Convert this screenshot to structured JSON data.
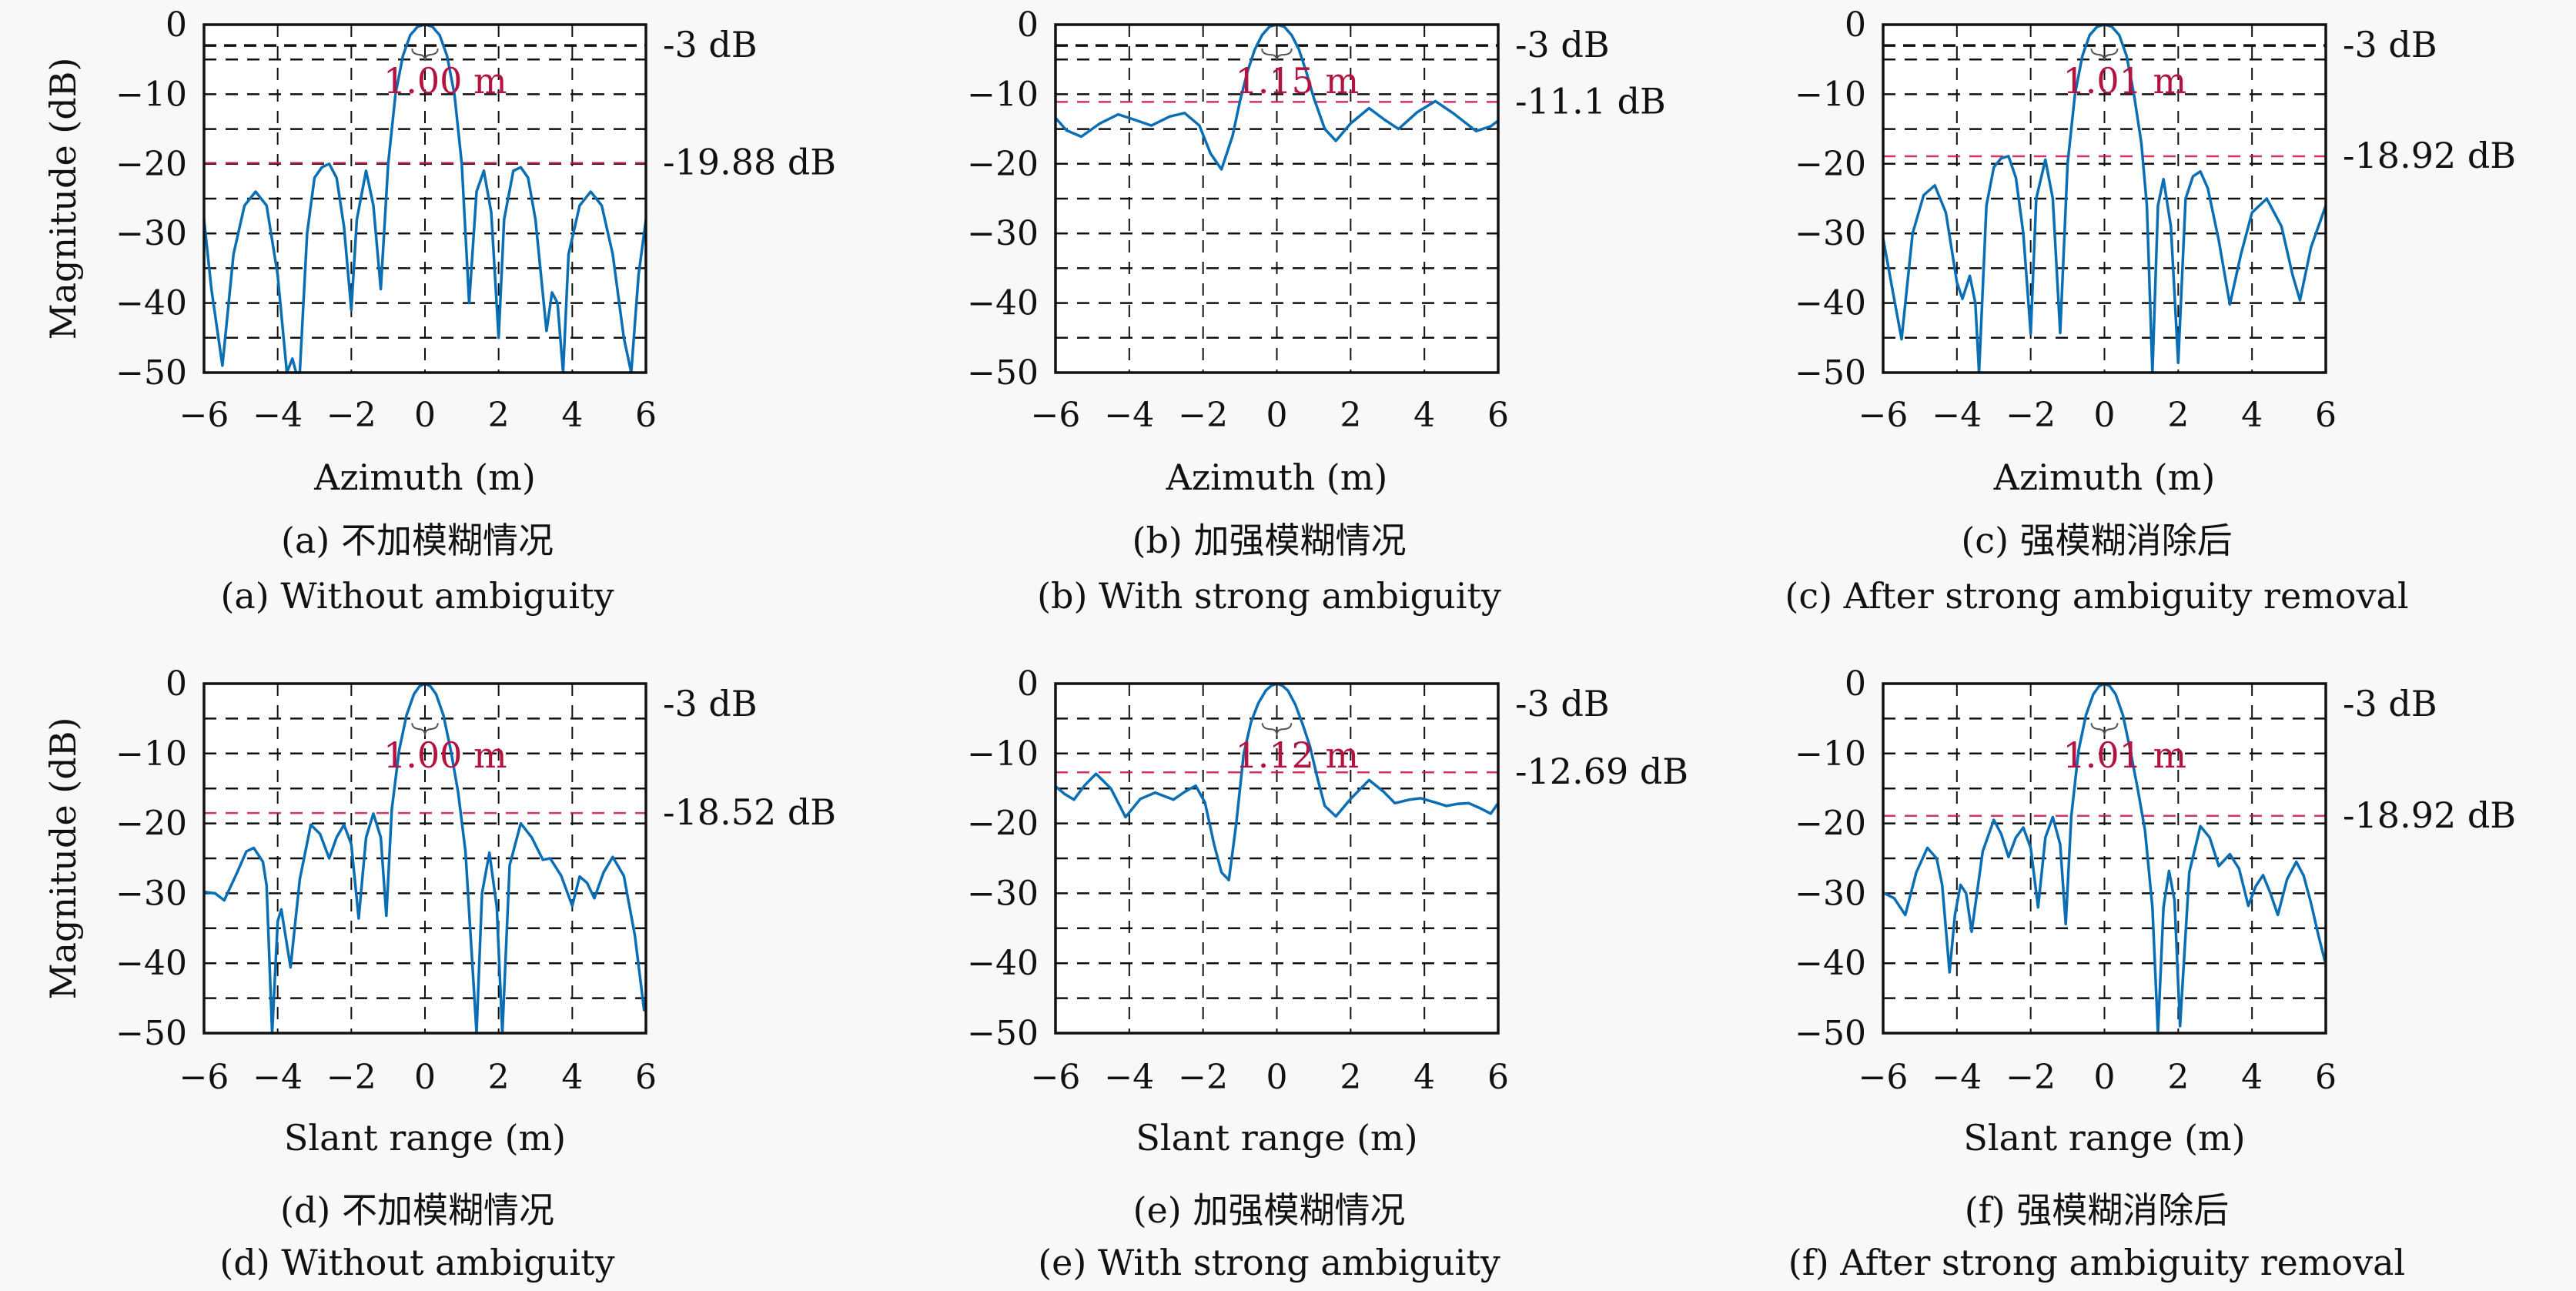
{
  "figure": {
    "ylabel": "Magnitude (dB)",
    "colors": {
      "curve": "#0a6eb4",
      "grid": "#111111",
      "pslr_line": "#d0104a",
      "annotation": "#b4123f",
      "background": "#f8f8f8"
    }
  },
  "chart_data": [
    {
      "id": "a",
      "type": "line",
      "row": 0,
      "col": 0,
      "xlabel": "Azimuth (m)",
      "ylabel": "Magnitude (dB)",
      "xlim": [
        -6,
        6
      ],
      "ylim": [
        -50,
        0
      ],
      "xticks": [
        -6,
        -4,
        -2,
        0,
        2,
        4,
        6
      ],
      "yticks": [
        0,
        -10,
        -20,
        -30,
        -40,
        -50
      ],
      "grid": true,
      "show_3db_line": true,
      "labels_right": [
        "-3 dB",
        "-19.88 dB"
      ],
      "pslr_db": -19.88,
      "resolution_label": "1.00 m",
      "resolution_m": 1.0,
      "caption_cn": "(a) 不加模糊情况",
      "caption_en": "(a) Without ambiguity",
      "x": [
        -6,
        -5.8,
        -5.5,
        -5.2,
        -4.9,
        -4.6,
        -4.3,
        -4.0,
        -3.75,
        -3.6,
        -3.5,
        -3.4,
        -3.2,
        -3.0,
        -2.8,
        -2.6,
        -2.4,
        -2.2,
        -2.0,
        -1.85,
        -1.6,
        -1.4,
        -1.2,
        -1.0,
        -0.8,
        -0.6,
        -0.4,
        -0.2,
        0,
        0.2,
        0.4,
        0.6,
        0.8,
        1.0,
        1.2,
        1.4,
        1.6,
        1.8,
        2.0,
        2.15,
        2.4,
        2.6,
        2.8,
        3.0,
        3.3,
        3.45,
        3.6,
        3.75,
        3.9,
        4.2,
        4.5,
        4.8,
        5.1,
        5.4,
        5.6,
        5.8,
        6.0
      ],
      "y": [
        -28,
        -38,
        -49,
        -33,
        -26,
        -24,
        -26,
        -36,
        -50,
        -48,
        -50,
        -50,
        -30,
        -22,
        -20.5,
        -20,
        -22,
        -29,
        -41,
        -28,
        -21,
        -26,
        -38,
        -20,
        -10,
        -4.5,
        -1.5,
        -0.3,
        0,
        -0.3,
        -1.5,
        -4.5,
        -10,
        -20,
        -40,
        -24,
        -21,
        -27,
        -45,
        -28,
        -21,
        -20.5,
        -22,
        -28,
        -44,
        -38.5,
        -40,
        -50,
        -33,
        -26,
        -24,
        -26,
        -33,
        -45,
        -50,
        -36,
        -28
      ]
    },
    {
      "id": "b",
      "type": "line",
      "row": 0,
      "col": 1,
      "xlabel": "Azimuth (m)",
      "ylabel": "",
      "xlim": [
        -6,
        6
      ],
      "ylim": [
        -50,
        0
      ],
      "xticks": [
        -6,
        -4,
        -2,
        0,
        2,
        4,
        6
      ],
      "yticks": [
        0,
        -10,
        -20,
        -30,
        -40,
        -50
      ],
      "grid": true,
      "show_3db_line": true,
      "labels_right": [
        "-3 dB",
        "-11.1 dB"
      ],
      "pslr_db": -11.1,
      "resolution_label": "1.15 m",
      "resolution_m": 1.15,
      "caption_cn": "(b) 加强模糊情况",
      "caption_en": "(b) With strong ambiguity",
      "x": [
        -6,
        -5.7,
        -5.3,
        -4.8,
        -4.3,
        -3.9,
        -3.4,
        -2.9,
        -2.5,
        -2.1,
        -1.8,
        -1.5,
        -1.2,
        -1.0,
        -0.8,
        -0.6,
        -0.4,
        -0.2,
        0,
        0.2,
        0.4,
        0.6,
        0.8,
        1.0,
        1.3,
        1.6,
        2.0,
        2.5,
        2.9,
        3.3,
        3.8,
        4.3,
        4.8,
        5.4,
        5.8,
        6.0
      ],
      "y": [
        -13.4,
        -15.2,
        -16.1,
        -14.2,
        -12.9,
        -13.6,
        -14.5,
        -13.2,
        -12.7,
        -14.5,
        -18.5,
        -20.8,
        -16,
        -11,
        -6.8,
        -3.6,
        -1.5,
        -0.3,
        0,
        -0.3,
        -1.5,
        -3.6,
        -6.8,
        -10.5,
        -15,
        -16.7,
        -14.2,
        -12,
        -13.6,
        -15,
        -12.6,
        -11,
        -12.8,
        -15.3,
        -14.6,
        -13.8
      ]
    },
    {
      "id": "c",
      "type": "line",
      "row": 0,
      "col": 2,
      "xlabel": "Azimuth (m)",
      "ylabel": "",
      "xlim": [
        -6,
        6
      ],
      "ylim": [
        -50,
        0
      ],
      "xticks": [
        -6,
        -4,
        -2,
        0,
        2,
        4,
        6
      ],
      "yticks": [
        0,
        -10,
        -20,
        -30,
        -40,
        -50
      ],
      "grid": true,
      "show_3db_line": true,
      "labels_right": [
        "-3 dB",
        "-18.92 dB"
      ],
      "pslr_db": -18.92,
      "resolution_label": "1.01 m",
      "resolution_m": 1.01,
      "caption_cn": "(c) 强模糊消除后",
      "caption_en": "(c) After strong ambiguity removal",
      "x": [
        -6,
        -5.75,
        -5.5,
        -5.2,
        -4.9,
        -4.6,
        -4.3,
        -4.0,
        -3.85,
        -3.65,
        -3.5,
        -3.4,
        -3.2,
        -3.0,
        -2.8,
        -2.6,
        -2.4,
        -2.2,
        -2.0,
        -1.85,
        -1.6,
        -1.4,
        -1.2,
        -1.0,
        -0.8,
        -0.6,
        -0.4,
        -0.2,
        0,
        0.2,
        0.4,
        0.6,
        0.8,
        1.0,
        1.15,
        1.3,
        1.45,
        1.6,
        1.8,
        2.0,
        2.2,
        2.4,
        2.6,
        2.8,
        3.1,
        3.4,
        3.7,
        4.0,
        4.4,
        4.8,
        5.1,
        5.3,
        5.6,
        6.0
      ],
      "y": [
        -30.7,
        -38,
        -45.2,
        -30,
        -24.5,
        -23.1,
        -27,
        -37,
        -39.4,
        -36.1,
        -40,
        -50,
        -26,
        -20.5,
        -19.2,
        -18.9,
        -22,
        -30,
        -44.4,
        -25,
        -19.4,
        -25,
        -44.3,
        -20,
        -10,
        -4.5,
        -1.5,
        -0.3,
        0,
        -0.3,
        -1.5,
        -4.5,
        -10,
        -17,
        -26,
        -50,
        -26,
        -22.2,
        -29,
        -48.6,
        -25,
        -21.8,
        -21.1,
        -23.5,
        -31,
        -40.2,
        -33,
        -27,
        -25,
        -29,
        -36,
        -39.6,
        -32,
        -26
      ]
    },
    {
      "id": "d",
      "type": "line",
      "row": 1,
      "col": 0,
      "xlabel": "Slant range (m)",
      "ylabel": "Magnitude (dB)",
      "xlim": [
        -6,
        6
      ],
      "ylim": [
        -50,
        0
      ],
      "xticks": [
        -6,
        -4,
        -2,
        0,
        2,
        4,
        6
      ],
      "yticks": [
        0,
        -10,
        -20,
        -30,
        -40,
        -50
      ],
      "grid": true,
      "show_3db_line": false,
      "labels_right": [
        "-3 dB",
        "-18.52 dB"
      ],
      "pslr_db": -18.52,
      "resolution_label": "1.00 m",
      "resolution_m": 1.0,
      "caption_cn": "(d) 不加模糊情况",
      "caption_en": "(d) Without ambiguity",
      "x": [
        -6,
        -5.7,
        -5.45,
        -5.1,
        -4.85,
        -4.65,
        -4.4,
        -4.3,
        -4.15,
        -4.0,
        -3.9,
        -3.65,
        -3.4,
        -3.1,
        -2.85,
        -2.6,
        -2.4,
        -2.2,
        -2.0,
        -1.8,
        -1.6,
        -1.4,
        -1.2,
        -1.05,
        -0.9,
        -0.7,
        -0.5,
        -0.3,
        -0.15,
        0,
        0.15,
        0.3,
        0.5,
        0.7,
        0.9,
        1.1,
        1.4,
        1.55,
        1.75,
        1.95,
        2.1,
        2.3,
        2.6,
        2.9,
        3.2,
        3.4,
        3.7,
        4.0,
        4.2,
        4.4,
        4.6,
        4.85,
        5.1,
        5.4,
        5.7,
        5.95,
        6.0
      ],
      "y": [
        -29.8,
        -30,
        -31,
        -27,
        -24,
        -23.5,
        -25.5,
        -28.9,
        -50,
        -34,
        -32.3,
        -40.6,
        -28,
        -20.2,
        -21.5,
        -25,
        -22,
        -20.2,
        -23,
        -33.6,
        -22,
        -18.6,
        -22,
        -33.2,
        -18,
        -9.5,
        -4.5,
        -1.5,
        -0.4,
        0,
        -0.4,
        -1.5,
        -4.5,
        -9.5,
        -15.5,
        -24,
        -50,
        -30,
        -24.2,
        -32,
        -50,
        -26,
        -20,
        -22,
        -25.2,
        -25,
        -27.5,
        -31.8,
        -27.6,
        -28.5,
        -30.7,
        -27,
        -24.8,
        -27.5,
        -36,
        -46.7,
        -45
      ]
    },
    {
      "id": "e",
      "type": "line",
      "row": 1,
      "col": 1,
      "xlabel": "Slant range (m)",
      "ylabel": "",
      "xlim": [
        -6,
        6
      ],
      "ylim": [
        -50,
        0
      ],
      "xticks": [
        -6,
        -4,
        -2,
        0,
        2,
        4,
        6
      ],
      "yticks": [
        0,
        -10,
        -20,
        -30,
        -40,
        -50
      ],
      "grid": true,
      "show_3db_line": false,
      "labels_right": [
        "-3 dB",
        "-12.69 dB"
      ],
      "pslr_db": -12.69,
      "resolution_label": "1.12 m",
      "resolution_m": 1.12,
      "caption_cn": "(e) 加强模糊情况",
      "caption_en": "(e) With strong ambiguity",
      "x": [
        -6,
        -5.75,
        -5.5,
        -5.2,
        -4.9,
        -4.5,
        -4.1,
        -3.7,
        -3.3,
        -2.8,
        -2.5,
        -2.2,
        -1.95,
        -1.7,
        -1.5,
        -1.3,
        -1.1,
        -0.9,
        -0.7,
        -0.5,
        -0.3,
        -0.15,
        0,
        0.15,
        0.3,
        0.5,
        0.7,
        0.9,
        1.1,
        1.3,
        1.6,
        2.0,
        2.5,
        2.9,
        3.2,
        3.6,
        3.9,
        4.3,
        4.6,
        4.9,
        5.2,
        5.5,
        5.8,
        6.0
      ],
      "y": [
        -14.7,
        -15.8,
        -16.6,
        -14.5,
        -12.9,
        -15,
        -19.1,
        -16.5,
        -15.6,
        -16.6,
        -15.5,
        -14.6,
        -17,
        -23,
        -27,
        -28.1,
        -20,
        -10.1,
        -5.5,
        -2.8,
        -1,
        -0.3,
        0,
        -0.3,
        -1,
        -3,
        -5.8,
        -9,
        -13.5,
        -17.5,
        -19,
        -16.5,
        -13.8,
        -15.5,
        -17.1,
        -16.6,
        -16.4,
        -17,
        -17.5,
        -17.2,
        -17.1,
        -17.8,
        -18.6,
        -17.1
      ]
    },
    {
      "id": "f",
      "type": "line",
      "row": 1,
      "col": 2,
      "xlabel": "Slant range (m)",
      "ylabel": "",
      "xlim": [
        -6,
        6
      ],
      "ylim": [
        -50,
        0
      ],
      "xticks": [
        -6,
        -4,
        -2,
        0,
        2,
        4,
        6
      ],
      "yticks": [
        0,
        -10,
        -20,
        -30,
        -40,
        -50
      ],
      "grid": true,
      "show_3db_line": false,
      "labels_right": [
        "-3 dB",
        "-18.92 dB"
      ],
      "pslr_db": -18.92,
      "resolution_label": "1.01 m",
      "resolution_m": 1.01,
      "caption_cn": "(f) 强模糊消除后",
      "caption_en": "(f) After strong ambiguity removal",
      "x": [
        -6,
        -5.7,
        -5.4,
        -5.1,
        -4.8,
        -4.55,
        -4.4,
        -4.2,
        -4.05,
        -3.9,
        -3.75,
        -3.6,
        -3.3,
        -3.0,
        -2.8,
        -2.6,
        -2.4,
        -2.2,
        -2.0,
        -1.8,
        -1.6,
        -1.4,
        -1.2,
        -1.05,
        -0.9,
        -0.7,
        -0.5,
        -0.3,
        -0.15,
        0,
        0.15,
        0.3,
        0.5,
        0.7,
        0.9,
        1.1,
        1.3,
        1.45,
        1.6,
        1.75,
        1.9,
        2.05,
        2.3,
        2.6,
        2.85,
        3.1,
        3.4,
        3.65,
        3.9,
        4.1,
        4.3,
        4.5,
        4.7,
        4.95,
        5.2,
        5.4,
        5.6,
        5.8,
        6.0
      ],
      "y": [
        -29.9,
        -30.7,
        -33.1,
        -27,
        -23.5,
        -25,
        -28.8,
        -41.3,
        -33,
        -28.8,
        -30,
        -35.5,
        -24,
        -19.5,
        -21.5,
        -24.8,
        -22,
        -20.6,
        -23.5,
        -32,
        -22,
        -19.1,
        -23,
        -34.4,
        -19,
        -9.5,
        -4.5,
        -1.5,
        -0.4,
        0,
        -0.4,
        -1.5,
        -4.5,
        -9.5,
        -15,
        -21,
        -32,
        -50,
        -32,
        -26.8,
        -31,
        -49,
        -27,
        -20.4,
        -22,
        -26.1,
        -24.4,
        -26.5,
        -31.8,
        -29,
        -27.4,
        -30,
        -33.1,
        -28,
        -25.5,
        -27.5,
        -31.4,
        -36,
        -40.2
      ]
    }
  ]
}
